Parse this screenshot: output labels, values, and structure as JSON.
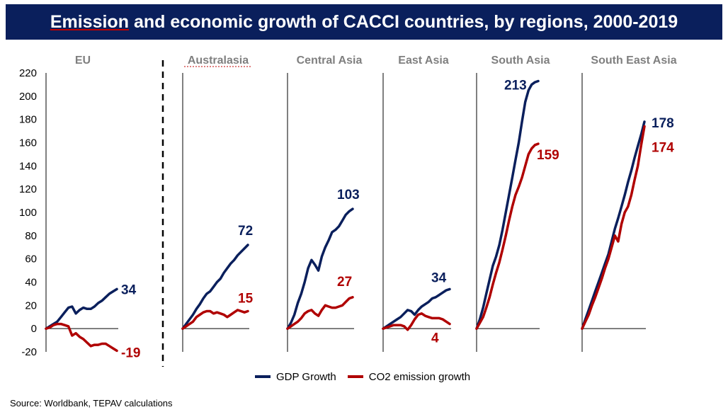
{
  "title": {
    "first_word": "Emission",
    "rest": "and economic growth of CACCI countries, by regions, 2000-2019"
  },
  "source": "Source: Worldbank, TEPAV calculations",
  "colors": {
    "gdp": "#0a1f5c",
    "co2": "#b00000",
    "title_bg": "#0a1f5c",
    "panel_title": "#7f7f7f"
  },
  "legend": [
    {
      "name": "GDP Growth",
      "color": "#0a1f5c"
    },
    {
      "name": "CO2 emission growth",
      "color": "#b00000"
    }
  ],
  "chart_data": {
    "type": "line",
    "x": [
      2000,
      2001,
      2002,
      2003,
      2004,
      2005,
      2006,
      2007,
      2008,
      2009,
      2010,
      2011,
      2012,
      2013,
      2014,
      2015,
      2016,
      2017,
      2018,
      2019
    ],
    "ylim": [
      -20,
      220
    ],
    "yticks": [
      -20,
      0,
      20,
      40,
      60,
      80,
      100,
      120,
      140,
      160,
      180,
      200,
      220
    ],
    "grid": false,
    "legend_position": "bottom",
    "panels": [
      {
        "name": "EU",
        "series": [
          {
            "name": "GDP Growth",
            "end_label": "34",
            "values": [
              0,
              2,
              4,
              6,
              10,
              14,
              18,
              19,
              13,
              16,
              18,
              17,
              17,
              19,
              22,
              24,
              27,
              30,
              32,
              34
            ]
          },
          {
            "name": "CO2 emission growth",
            "end_label": "-19",
            "values": [
              0,
              1,
              3,
              4,
              4,
              3,
              2,
              -6,
              -4,
              -7,
              -9,
              -12,
              -15,
              -14,
              -14,
              -13,
              -13,
              -15,
              -17,
              -19
            ]
          }
        ]
      },
      {
        "name": "Australasia",
        "series": [
          {
            "name": "GDP Growth",
            "end_label": "72",
            "values": [
              0,
              4,
              8,
              12,
              17,
              21,
              26,
              30,
              32,
              36,
              40,
              43,
              48,
              52,
              56,
              59,
              63,
              66,
              69,
              72
            ]
          },
          {
            "name": "CO2 emission growth",
            "end_label": "15",
            "values": [
              0,
              2,
              4,
              6,
              10,
              12,
              14,
              15,
              15,
              13,
              14,
              13,
              12,
              10,
              12,
              14,
              16,
              15,
              14,
              15
            ]
          }
        ]
      },
      {
        "name": "Central Asia",
        "series": [
          {
            "name": "GDP Growth",
            "end_label": "103",
            "values": [
              0,
              5,
              12,
              22,
              30,
              40,
              52,
              59,
              55,
              50,
              62,
              70,
              76,
              83,
              85,
              88,
              93,
              98,
              101,
              103
            ]
          },
          {
            "name": "CO2 emission growth",
            "end_label": "27",
            "values": [
              0,
              2,
              4,
              6,
              9,
              13,
              15,
              16,
              13,
              11,
              16,
              20,
              19,
              18,
              18,
              19,
              20,
              23,
              26,
              27
            ]
          }
        ]
      },
      {
        "name": "East Asia",
        "series": [
          {
            "name": "GDP Growth",
            "end_label": "34",
            "values": [
              0,
              2,
              4,
              6,
              8,
              10,
              13,
              16,
              15,
              12,
              16,
              19,
              21,
              23,
              26,
              27,
              29,
              31,
              33,
              34
            ]
          },
          {
            "name": "CO2 emission growth",
            "end_label": "4",
            "values": [
              0,
              1,
              2,
              3,
              3,
              3,
              2,
              -1,
              3,
              8,
              12,
              13,
              11,
              10,
              9,
              9,
              9,
              8,
              6,
              4
            ]
          }
        ]
      },
      {
        "name": "South Asia",
        "series": [
          {
            "name": "GDP Growth",
            "end_label": "213",
            "values": [
              0,
              8,
              18,
              30,
              42,
              54,
              62,
              72,
              85,
              100,
              115,
              130,
              145,
              160,
              178,
              195,
              205,
              210,
              212,
              213
            ]
          },
          {
            "name": "CO2 emission growth",
            "end_label": "159",
            "values": [
              0,
              5,
              10,
              18,
              27,
              38,
              48,
              57,
              68,
              80,
              93,
              105,
              115,
              122,
              130,
              140,
              150,
              155,
              158,
              159
            ]
          }
        ]
      },
      {
        "name": "South East Asia",
        "series": [
          {
            "name": "GDP Growth",
            "end_label": "178",
            "values": [
              0,
              8,
              16,
              24,
              32,
              40,
              48,
              56,
              64,
              75,
              86,
              95,
              105,
              115,
              126,
              136,
              147,
              157,
              167,
              178
            ]
          },
          {
            "name": "CO2 emission growth",
            "end_label": "174",
            "values": [
              0,
              6,
              12,
              20,
              27,
              35,
              43,
              52,
              60,
              70,
              80,
              75,
              90,
              100,
              105,
              115,
              128,
              140,
              158,
              174
            ]
          }
        ]
      }
    ]
  }
}
